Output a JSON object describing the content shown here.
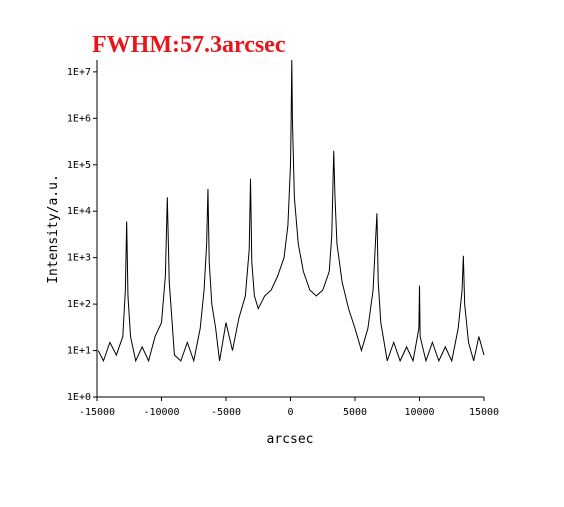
{
  "chart_data": {
    "type": "line",
    "title": "FWHM:57.3arcsec",
    "title_color": "#e8151a",
    "x_label": "arcsec",
    "y_label": "Intensity/a.u.",
    "color": "#000000",
    "log_y": true,
    "xlim": [
      -15000,
      15000
    ],
    "xticks": [
      -15000,
      -10000,
      -5000,
      0,
      5000,
      10000,
      15000
    ],
    "ylim": [
      1,
      18000000
    ],
    "yticks": [
      {
        "value": 1,
        "label": "1E+0"
      },
      {
        "value": 10,
        "label": "1E+1"
      },
      {
        "value": 100,
        "label": "1E+2"
      },
      {
        "value": 1000,
        "label": "1E+3"
      },
      {
        "value": 10000,
        "label": "1E+4"
      },
      {
        "value": 100000,
        "label": "1E+5"
      },
      {
        "value": 1000000,
        "label": "1E+6"
      },
      {
        "value": 10000000,
        "label": "1E+7"
      }
    ],
    "x": [
      -14900,
      -14500,
      -14000,
      -13500,
      -13000,
      -12800,
      -12700,
      -12600,
      -12400,
      -12000,
      -11500,
      -11000,
      -10500,
      -10000,
      -9700,
      -9550,
      -9400,
      -9200,
      -9000,
      -8500,
      -8000,
      -7500,
      -7000,
      -6700,
      -6500,
      -6400,
      -6300,
      -6100,
      -5800,
      -5500,
      -5000,
      -4500,
      -4000,
      -3500,
      -3200,
      -3100,
      -3000,
      -2800,
      -2500,
      -2000,
      -1500,
      -1000,
      -500,
      -200,
      0,
      50,
      100,
      150,
      300,
      600,
      1000,
      1500,
      2000,
      2500,
      3000,
      3200,
      3350,
      3450,
      3600,
      4000,
      4500,
      5000,
      5500,
      6000,
      6400,
      6700,
      6800,
      7000,
      7500,
      8000,
      8500,
      9000,
      9500,
      9950,
      10000,
      10050,
      10500,
      11000,
      11500,
      12000,
      12500,
      13000,
      13300,
      13400,
      13500,
      13800,
      14200,
      14600,
      15000
    ],
    "values": [
      10,
      6,
      15,
      8,
      20,
      200,
      6000,
      150,
      20,
      6,
      12,
      6,
      20,
      40,
      400,
      20000,
      300,
      50,
      8,
      6,
      15,
      6,
      30,
      200,
      2000,
      30000,
      800,
      100,
      30,
      6,
      40,
      10,
      50,
      150,
      1500,
      50000,
      800,
      150,
      80,
      150,
      200,
      400,
      1000,
      5000,
      100000,
      900000,
      18000000,
      900000,
      20000,
      2000,
      500,
      200,
      150,
      200,
      500,
      3000,
      200000,
      20000,
      2000,
      300,
      80,
      30,
      10,
      30,
      200,
      9000,
      300,
      40,
      6,
      15,
      6,
      12,
      6,
      30,
      250,
      20,
      6,
      15,
      6,
      12,
      6,
      30,
      200,
      1100,
      100,
      15,
      6,
      20,
      8
    ]
  }
}
